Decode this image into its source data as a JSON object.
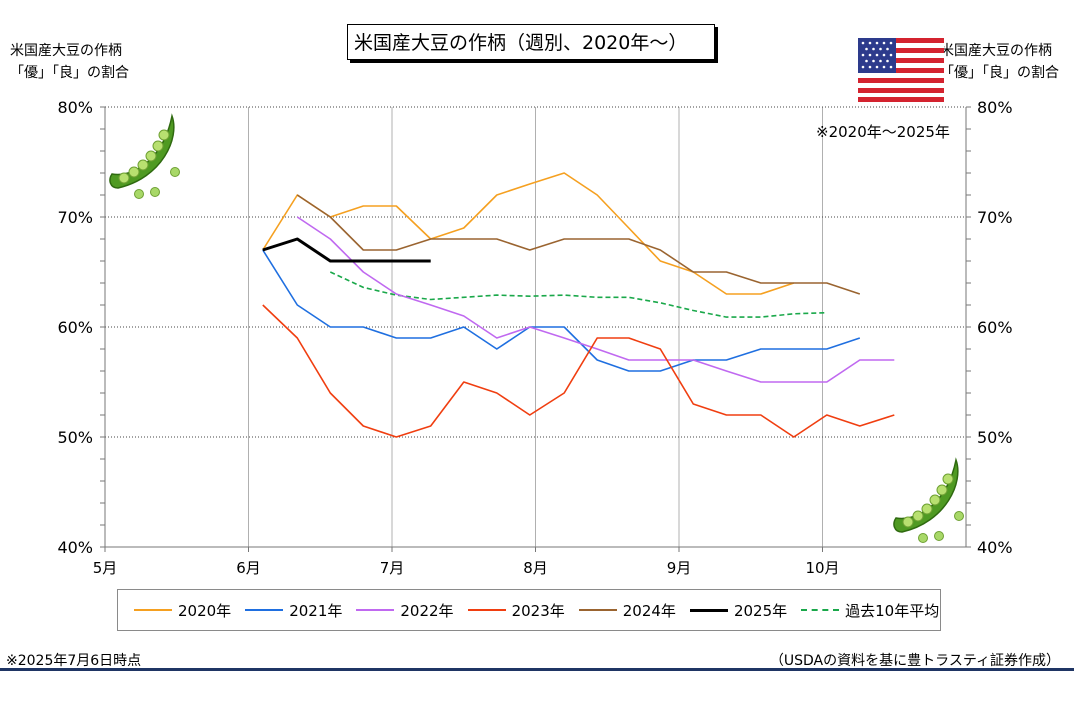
{
  "chart_title": "米国産大豆の作柄（週別、2020年～）",
  "y_axis_left_label": [
    "米国産大豆の作柄",
    "「優」「良」の割合"
  ],
  "y_axis_right_label": [
    "米国産大豆の作柄",
    "「優」「良」の割合"
  ],
  "note_top": "※2020年～2025年",
  "footer_left": "※2025年7月6日時点",
  "footer_right": "（USDAの資料を基に豊トラスティ証券作成）",
  "colors": {
    "2020年": "#f5a020",
    "2021年": "#1f6fe0",
    "2022年": "#c069f0",
    "2023年": "#f03e10",
    "2024年": "#9a6430",
    "2025年": "#000000",
    "過去10年平均": "#1aa84a",
    "footer_bar": "#1f3564"
  },
  "icons": [
    "us-flag-icon",
    "soybean-pod-icon"
  ],
  "chart_data": {
    "type": "line",
    "x_unit": "month",
    "x_ticks": [
      {
        "value": 5,
        "label": "5月"
      },
      {
        "value": 6,
        "label": "6月"
      },
      {
        "value": 7,
        "label": "7月"
      },
      {
        "value": 8,
        "label": "8月"
      },
      {
        "value": 9,
        "label": "9月"
      },
      {
        "value": 10,
        "label": "10月"
      }
    ],
    "xlim": [
      5,
      11
    ],
    "ylim": [
      40,
      80
    ],
    "y_ticks": [
      "40%",
      "50%",
      "60%",
      "70%",
      "80%"
    ],
    "y_tick_values": [
      40,
      50,
      60,
      70,
      80
    ],
    "grid": true,
    "legend_position": "bottom",
    "series": [
      {
        "name": "2020年",
        "style": "solid",
        "width": 1.6,
        "x": [
          6.1,
          6.34,
          6.57,
          6.8,
          7.03,
          7.27,
          7.5,
          7.73,
          7.96,
          8.2,
          8.43,
          8.65,
          8.87,
          9.1,
          9.33,
          9.57,
          9.8
        ],
        "y": [
          67,
          72,
          70,
          71,
          71,
          68,
          69,
          72,
          73,
          74,
          72,
          69,
          66,
          65,
          63,
          63,
          64
        ]
      },
      {
        "name": "2021年",
        "style": "solid",
        "width": 1.6,
        "x": [
          6.1,
          6.34,
          6.57,
          6.8,
          7.03,
          7.27,
          7.5,
          7.73,
          7.96,
          8.2,
          8.43,
          8.65,
          8.87,
          9.1,
          9.33,
          9.57,
          9.8,
          10.03,
          10.26
        ],
        "y": [
          67,
          62,
          60,
          60,
          59,
          59,
          60,
          58,
          60,
          60,
          57,
          56,
          56,
          57,
          57,
          58,
          58,
          58,
          59
        ]
      },
      {
        "name": "2022年",
        "style": "solid",
        "width": 1.6,
        "x": [
          6.34,
          6.57,
          6.8,
          7.03,
          7.27,
          7.5,
          7.73,
          7.96,
          8.2,
          8.43,
          8.65,
          8.87,
          9.1,
          9.33,
          9.57,
          9.8,
          10.03,
          10.26,
          10.5
        ],
        "y": [
          70,
          68,
          65,
          63,
          62,
          61,
          59,
          60,
          59,
          58,
          57,
          57,
          57,
          56,
          55,
          55,
          55,
          57,
          57
        ]
      },
      {
        "name": "2023年",
        "style": "solid",
        "width": 1.6,
        "x": [
          6.1,
          6.34,
          6.57,
          6.8,
          7.03,
          7.27,
          7.5,
          7.73,
          7.96,
          8.2,
          8.43,
          8.65,
          8.87,
          9.1,
          9.33,
          9.57,
          9.8,
          10.03,
          10.26,
          10.5
        ],
        "y": [
          62,
          59,
          54,
          51,
          50,
          51,
          55,
          54,
          52,
          54,
          59,
          59,
          58,
          53,
          52,
          52,
          50,
          52,
          51,
          52
        ]
      },
      {
        "name": "2024年",
        "style": "solid",
        "width": 1.6,
        "x": [
          6.34,
          6.57,
          6.8,
          7.03,
          7.27,
          7.5,
          7.73,
          7.96,
          8.2,
          8.43,
          8.65,
          8.87,
          9.1,
          9.33,
          9.57,
          9.8,
          10.03,
          10.26
        ],
        "y": [
          72,
          70,
          67,
          67,
          68,
          68,
          68,
          67,
          68,
          68,
          68,
          67,
          65,
          65,
          64,
          64,
          64,
          63
        ]
      },
      {
        "name": "2025年",
        "style": "solid",
        "width": 3,
        "x": [
          6.1,
          6.34,
          6.57,
          6.8,
          7.03,
          7.27
        ],
        "y": [
          67,
          68,
          66,
          66,
          66,
          66
        ]
      },
      {
        "name": "過去10年平均",
        "style": "dashed",
        "width": 1.6,
        "x": [
          6.57,
          6.8,
          7.03,
          7.27,
          7.5,
          7.73,
          7.96,
          8.2,
          8.43,
          8.65,
          8.87,
          9.1,
          9.33,
          9.57,
          9.8,
          10.03
        ],
        "y": [
          65,
          63.6,
          62.9,
          62.5,
          62.7,
          62.9,
          62.8,
          62.9,
          62.7,
          62.7,
          62.2,
          61.5,
          60.9,
          60.9,
          61.2,
          61.3
        ]
      }
    ]
  }
}
